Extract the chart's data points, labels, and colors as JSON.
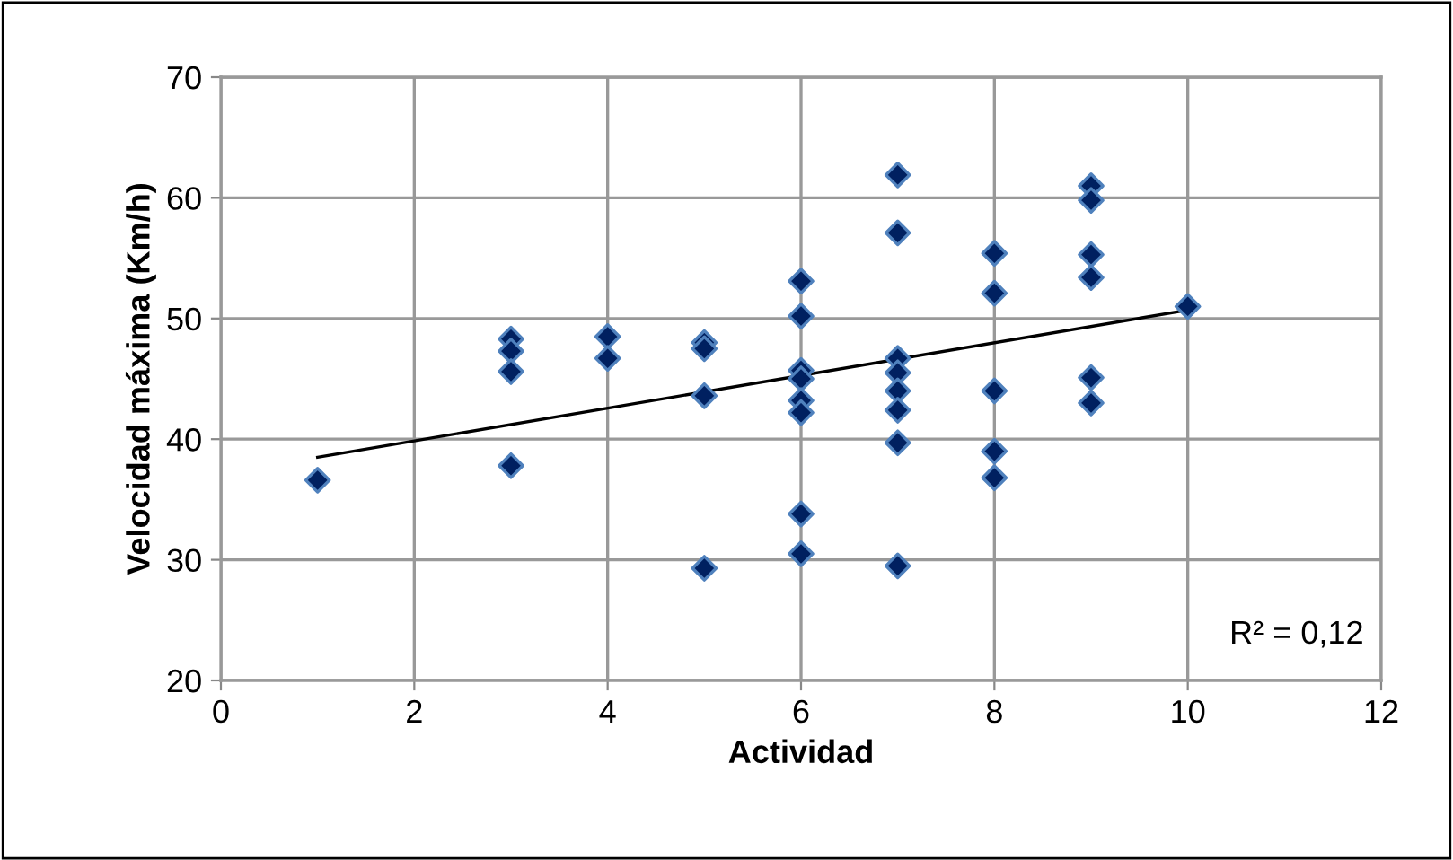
{
  "chart_data": {
    "type": "scatter",
    "xlabel": "Actividad",
    "ylabel": "Velocidad máxima (Km/h)",
    "xlim": [
      0,
      12
    ],
    "xticks": [
      0,
      2,
      4,
      6,
      8,
      10,
      12
    ],
    "ylim": [
      20,
      70
    ],
    "yticks": [
      20,
      30,
      40,
      50,
      60,
      70
    ],
    "grid": true,
    "series": [
      {
        "marker": "diamond",
        "color": "#002060",
        "x": [
          1,
          3,
          3,
          3,
          3,
          4,
          4,
          5,
          5,
          5,
          5,
          6,
          6,
          6,
          6,
          6,
          6,
          6,
          6,
          7,
          7,
          7,
          7,
          7,
          7,
          7,
          7,
          8,
          8,
          8,
          8,
          8,
          9,
          9,
          9,
          9,
          9,
          9,
          10
        ],
        "values": [
          36.6,
          48.3,
          47.3,
          45.6,
          37.8,
          48.5,
          46.7,
          48.0,
          47.5,
          43.6,
          29.3,
          53.1,
          50.2,
          45.7,
          45.0,
          43.2,
          42.2,
          33.8,
          30.5,
          61.9,
          57.1,
          46.7,
          45.5,
          44.0,
          42.4,
          39.7,
          29.5,
          55.4,
          52.1,
          44.0,
          39.0,
          36.8,
          61.0,
          59.8,
          55.3,
          53.4,
          45.1,
          43.0,
          51.0
        ]
      },
      {
        "type": "line",
        "marker": "none",
        "color": "#000000",
        "x": [
          1,
          10
        ],
        "values": [
          38.5,
          50.7
        ]
      }
    ],
    "annotations": [
      "R² = 0,12"
    ]
  }
}
